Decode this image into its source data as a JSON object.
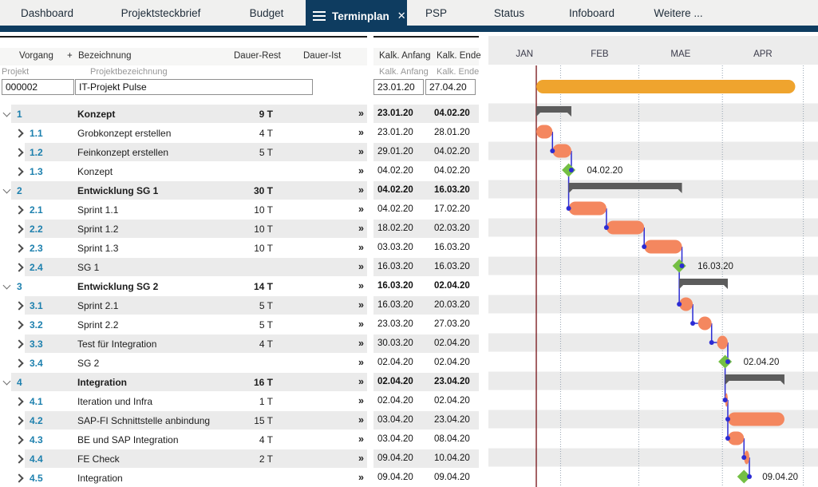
{
  "tabs": [
    {
      "label": "Dashboard"
    },
    {
      "label": "Projektsteckbrief"
    },
    {
      "label": "Budget"
    },
    {
      "label": "Terminplan",
      "active": true
    },
    {
      "label": "PSP"
    },
    {
      "label": "Status"
    },
    {
      "label": "Infoboard"
    },
    {
      "label": "Weitere ..."
    }
  ],
  "table": {
    "headers": {
      "vorgang": "Vorgang",
      "add": "+",
      "bezeichnung": "Bezeichnung",
      "dauer_rest": "Dauer-Rest",
      "dauer_ist": "Dauer-Ist",
      "kalk_anfang": "Kalk. Anfang",
      "kalk_ende": "Kalk. Ende"
    },
    "subheaders": {
      "projekt": "Projekt",
      "projektbezeichnung": "Projektbezeichnung",
      "kalk_anfang": "Kalk. Anfang",
      "kalk_ende": "Kalk. Ende"
    },
    "project": {
      "id": "000002",
      "name": "IT-Projekt Pulse",
      "start": "23.01.20",
      "end": "27.04.20"
    },
    "rows": [
      {
        "id": "1",
        "level": 1,
        "type": "summary",
        "name": "Konzept",
        "duration": "9 T",
        "more": "»",
        "start": "23.01.20",
        "end": "04.02.20"
      },
      {
        "id": "1.1",
        "level": 2,
        "type": "task",
        "name": "Grobkonzept erstellen",
        "duration": "4 T",
        "more": "»",
        "start": "23.01.20",
        "end": "28.01.20"
      },
      {
        "id": "1.2",
        "level": 2,
        "type": "task",
        "name": "Feinkonzept erstellen",
        "duration": "5 T",
        "more": "»",
        "start": "29.01.20",
        "end": "04.02.20"
      },
      {
        "id": "1.3",
        "level": 2,
        "type": "milestone",
        "name": "Konzept",
        "duration": "",
        "more": "»",
        "start": "04.02.20",
        "end": "04.02.20",
        "label": "04.02.20"
      },
      {
        "id": "2",
        "level": 1,
        "type": "summary",
        "name": "Entwicklung SG 1",
        "duration": "30 T",
        "more": "»",
        "start": "04.02.20",
        "end": "16.03.20"
      },
      {
        "id": "2.1",
        "level": 2,
        "type": "task",
        "name": "Sprint 1.1",
        "duration": "10 T",
        "more": "»",
        "start": "04.02.20",
        "end": "17.02.20"
      },
      {
        "id": "2.2",
        "level": 2,
        "type": "task",
        "name": "Sprint 1.2",
        "duration": "10 T",
        "more": "»",
        "start": "18.02.20",
        "end": "02.03.20"
      },
      {
        "id": "2.3",
        "level": 2,
        "type": "task",
        "name": "Sprint 1.3",
        "duration": "10 T",
        "more": "»",
        "start": "03.03.20",
        "end": "16.03.20"
      },
      {
        "id": "2.4",
        "level": 2,
        "type": "milestone",
        "name": "SG 1",
        "duration": "",
        "more": "»",
        "start": "16.03.20",
        "end": "16.03.20",
        "label": "16.03.20"
      },
      {
        "id": "3",
        "level": 1,
        "type": "summary",
        "name": "Entwicklung SG 2",
        "duration": "14 T",
        "more": "»",
        "start": "16.03.20",
        "end": "02.04.20"
      },
      {
        "id": "3.1",
        "level": 2,
        "type": "task",
        "name": "Sprint 2.1",
        "duration": "5 T",
        "more": "»",
        "start": "16.03.20",
        "end": "20.03.20"
      },
      {
        "id": "3.2",
        "level": 2,
        "type": "task",
        "name": "Sprint 2.2",
        "duration": "5 T",
        "more": "»",
        "start": "23.03.20",
        "end": "27.03.20"
      },
      {
        "id": "3.3",
        "level": 2,
        "type": "task",
        "name": "Test für  Integration",
        "duration": "4 T",
        "more": "»",
        "start": "30.03.20",
        "end": "02.04.20"
      },
      {
        "id": "3.4",
        "level": 2,
        "type": "milestone",
        "name": "SG 2",
        "duration": "",
        "more": "»",
        "start": "02.04.20",
        "end": "02.04.20",
        "label": "02.04.20"
      },
      {
        "id": "4",
        "level": 1,
        "type": "summary",
        "name": "Integration",
        "duration": "16 T",
        "more": "»",
        "start": "02.04.20",
        "end": "23.04.20"
      },
      {
        "id": "4.1",
        "level": 2,
        "type": "task",
        "name": "Iteration und Infra",
        "duration": "1 T",
        "more": "»",
        "start": "02.04.20",
        "end": "02.04.20"
      },
      {
        "id": "4.2",
        "level": 2,
        "type": "task",
        "name": "SAP-FI Schnittstelle anbindung",
        "duration": "15 T",
        "more": "»",
        "start": "03.04.20",
        "end": "23.04.20"
      },
      {
        "id": "4.3",
        "level": 2,
        "type": "task",
        "name": "BE und SAP Integration",
        "duration": "4 T",
        "more": "»",
        "start": "03.04.20",
        "end": "08.04.20"
      },
      {
        "id": "4.4",
        "level": 2,
        "type": "task",
        "name": "FE Check",
        "duration": "2 T",
        "more": "»",
        "start": "09.04.20",
        "end": "10.04.20"
      },
      {
        "id": "4.5",
        "level": 2,
        "type": "milestone",
        "name": "Integration",
        "duration": "",
        "more": "»",
        "start": "09.04.20",
        "end": "09.04.20",
        "label": "09.04.20"
      }
    ]
  },
  "chart_data": {
    "type": "gantt",
    "months": [
      "JAN",
      "FEB",
      "MAE",
      "APR"
    ],
    "month_boundaries": [
      "01.02.20",
      "01.03.20",
      "01.04.20",
      "01.05.20"
    ],
    "today_line": "23.01.20",
    "project_bar": {
      "start": "23.01.20",
      "end": "27.04.20"
    },
    "milestone_labels": [
      "04.02.20",
      "16.03.20",
      "02.04.20",
      "09.04.20"
    ],
    "connectors": [
      {
        "from": "1.1",
        "to": "1.2",
        "mode": "fs"
      },
      {
        "from": "1.2",
        "to": "1.3",
        "mode": "fs"
      },
      {
        "from": "1.3",
        "to": "2.1",
        "mode": "fs"
      },
      {
        "from": "2.1",
        "to": "2.2",
        "mode": "fs"
      },
      {
        "from": "2.2",
        "to": "2.3",
        "mode": "fs"
      },
      {
        "from": "2.3",
        "to": "2.4",
        "mode": "fs"
      },
      {
        "from": "2.4",
        "to": "3.1",
        "mode": "fs"
      },
      {
        "from": "3.1",
        "to": "3.2",
        "mode": "fs"
      },
      {
        "from": "3.2",
        "to": "3.3",
        "mode": "fs"
      },
      {
        "from": "3.3",
        "to": "3.4",
        "mode": "fs"
      },
      {
        "from": "3.4",
        "to": "4.1",
        "mode": "fs"
      },
      {
        "from": "4.1",
        "to": "4.2",
        "mode": "fs"
      },
      {
        "from": "4.2",
        "to": "4.3",
        "mode": "ss"
      },
      {
        "from": "4.3",
        "to": "4.4",
        "mode": "fs"
      },
      {
        "from": "4.4",
        "to": "4.5",
        "mode": "fs"
      }
    ],
    "colors": {
      "project_bar": "#efa42e",
      "task_bar": "#f4875f",
      "summary_bar": "#5c5c5c",
      "milestone": "#74bf44",
      "connector": "#2b2bd4",
      "today_line": "#7d2024",
      "grid_dotted": "#93a1af",
      "stripe": "#ebebeb",
      "header_bg": "#ececec"
    }
  }
}
